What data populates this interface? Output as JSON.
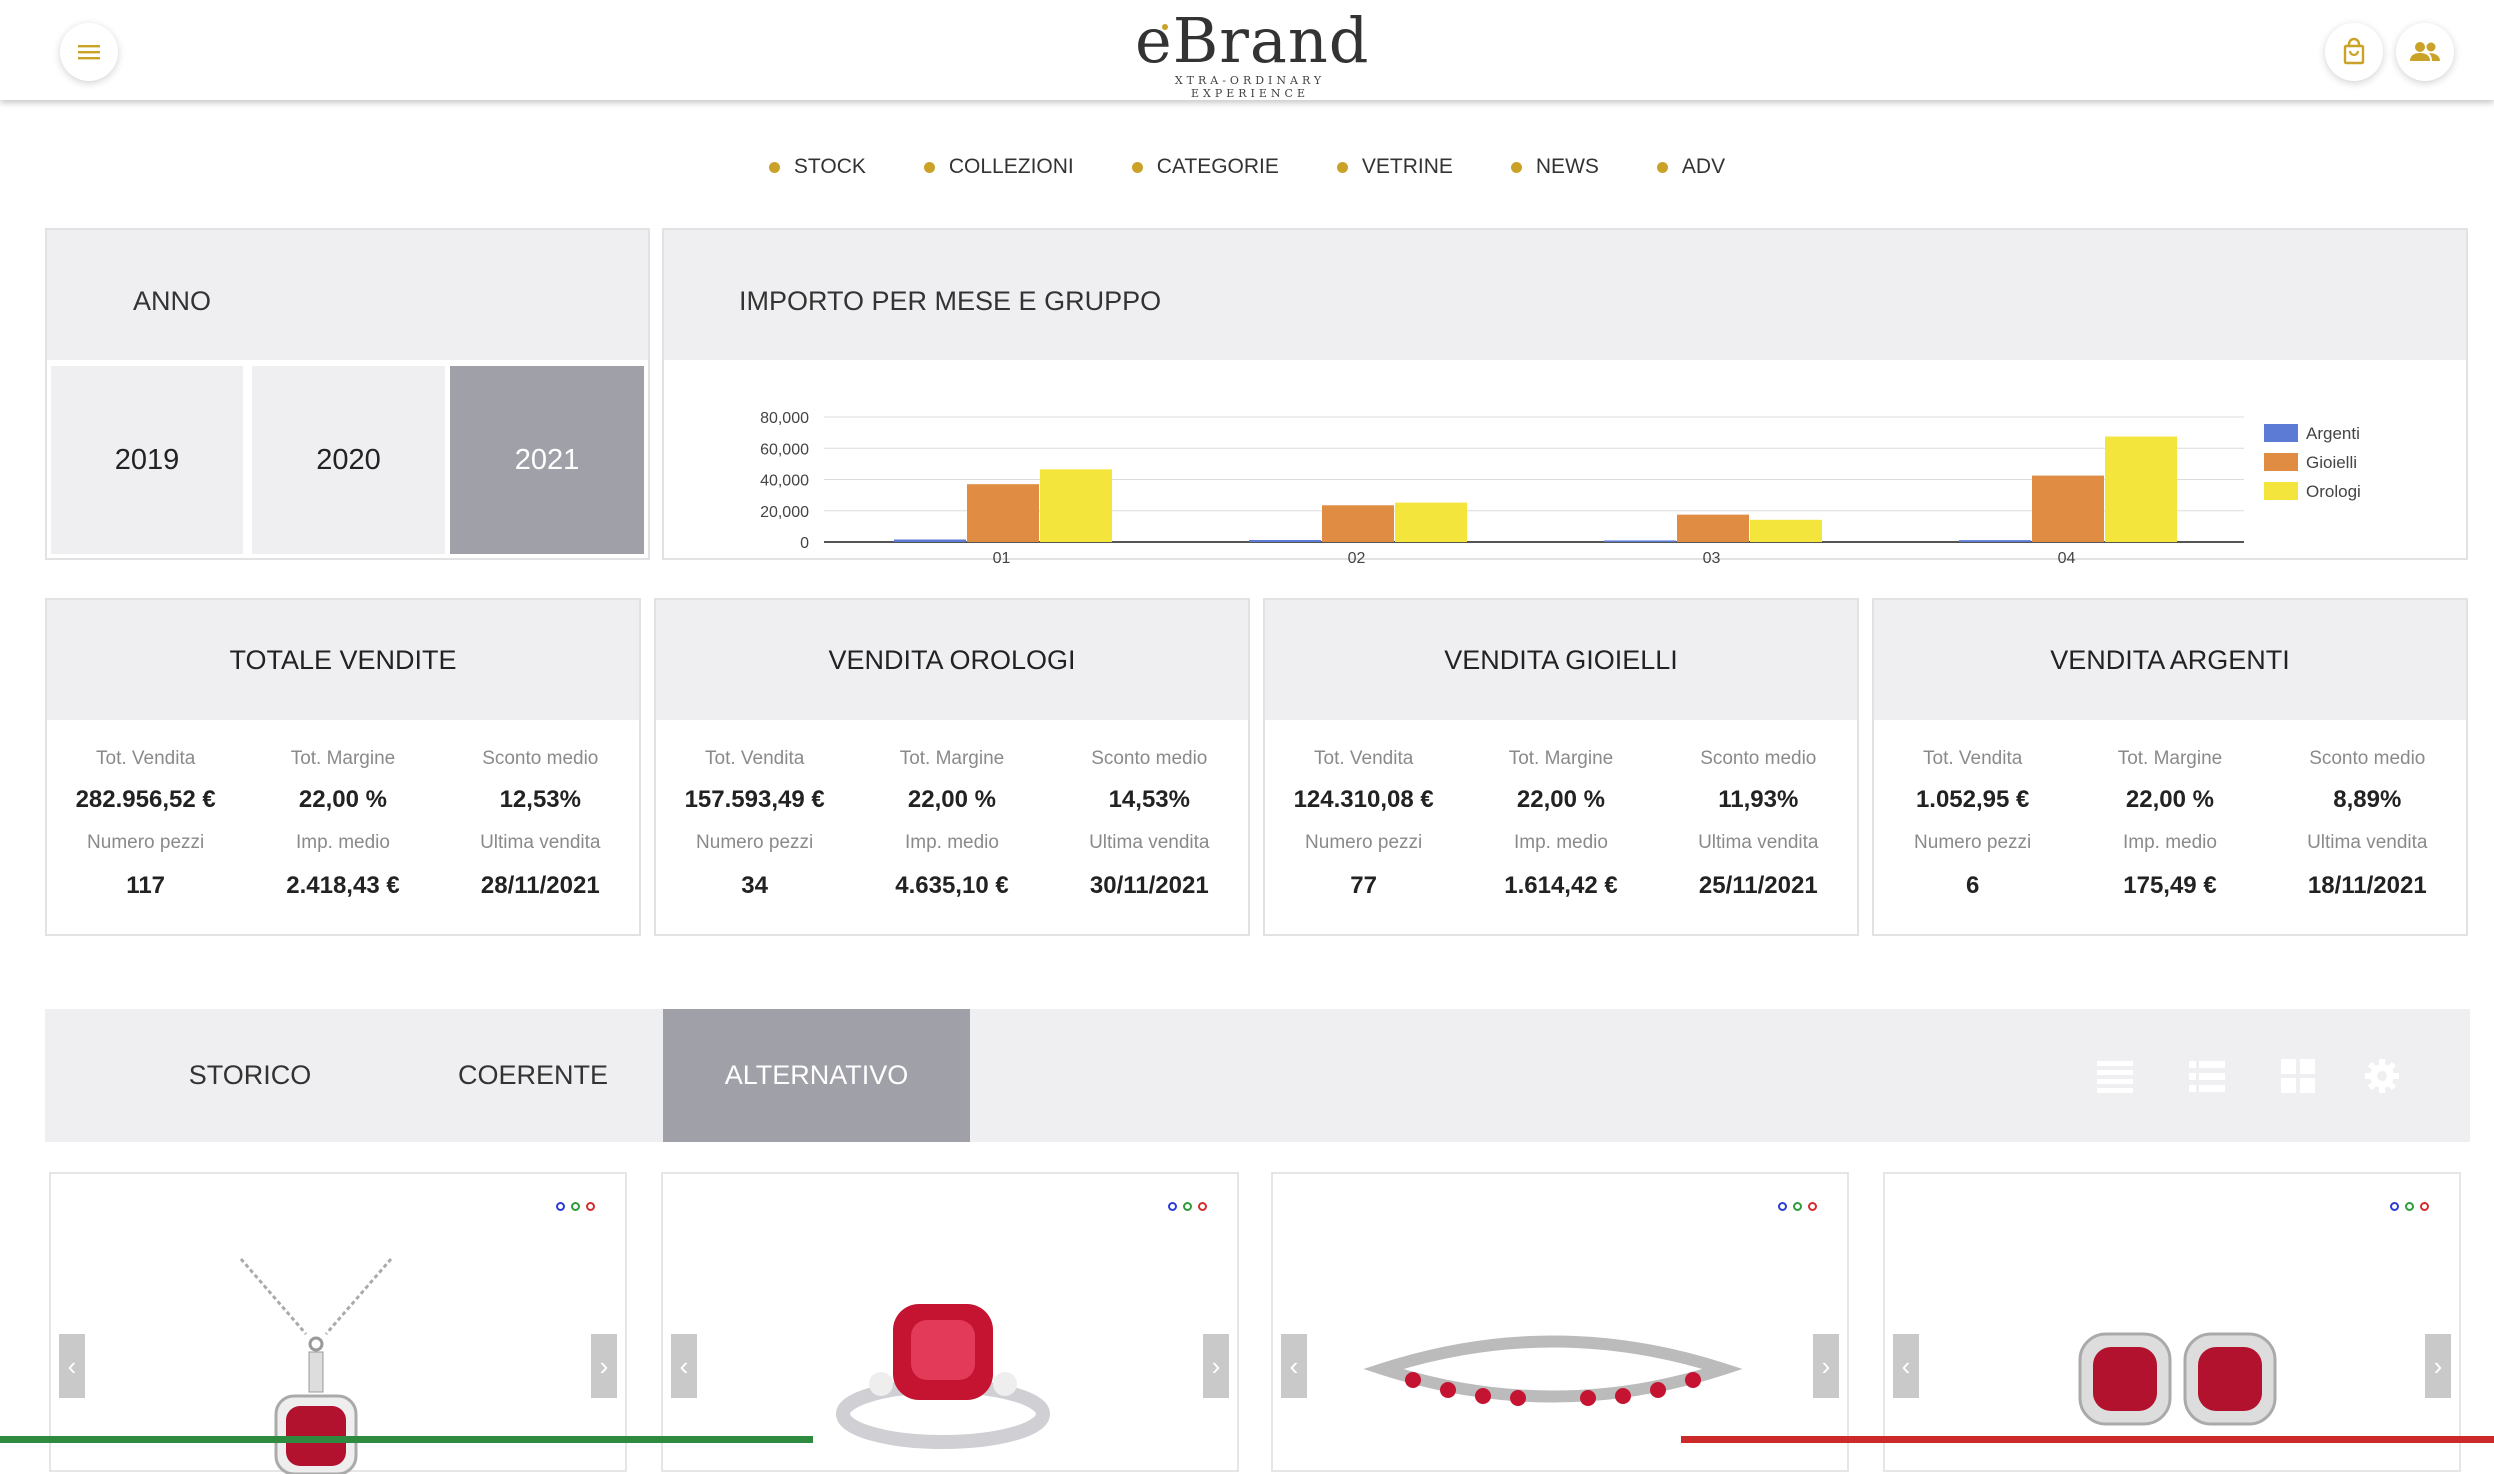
{
  "brand": {
    "name": "eBrand",
    "tagline": "XTRA-ORDINARY EXPERIENCE"
  },
  "colors": {
    "accent": "#c9a227",
    "panel_bg": "#efeff1",
    "active_bg": "#a0a0a8",
    "argenti": "#5b7bd5",
    "gioielli": "#e08c42",
    "orologi": "#f3e53b"
  },
  "header_icons": [
    "menu-icon",
    "shopping-bag-icon",
    "users-icon"
  ],
  "nav": [
    "STOCK",
    "COLLEZIONI",
    "CATEGORIE",
    "VETRINE",
    "NEWS",
    "ADV"
  ],
  "year_panel": {
    "title": "ANNO",
    "years": [
      "2019",
      "2020",
      "2021"
    ],
    "selected": "2021"
  },
  "chart_panel": {
    "title": "IMPORTO PER MESE E GRUPPO"
  },
  "chart_data": {
    "type": "bar",
    "title": "IMPORTO PER MESE E GRUPPO",
    "categories": [
      "01",
      "02",
      "03",
      "04"
    ],
    "series": [
      {
        "name": "Argenti",
        "values": [
          1600,
          1300,
          1000,
          1200
        ]
      },
      {
        "name": "Gioielli",
        "values": [
          37000,
          23500,
          17500,
          42500
        ]
      },
      {
        "name": "Orologi",
        "values": [
          46500,
          25200,
          14200,
          67500
        ]
      }
    ],
    "ylim": [
      0,
      80000
    ],
    "yticks": [
      "80,000",
      "60,000",
      "40,000",
      "20,000",
      "0"
    ],
    "xlabel": "",
    "ylabel": "",
    "legend": "right",
    "grid": true
  },
  "stats": [
    {
      "title": "TOTALE VENDITE",
      "tot_vendita": "282.956,52 €",
      "tot_margine": "22,00 %",
      "sconto_medio": "12,53%",
      "numero_pezzi": "117",
      "imp_medio": "2.418,43 €",
      "ultima_vendita": "28/11/2021"
    },
    {
      "title": "VENDITA OROLOGI",
      "tot_vendita": "157.593,49 €",
      "tot_margine": "22,00 %",
      "sconto_medio": "14,53%",
      "numero_pezzi": "34",
      "imp_medio": "4.635,10 €",
      "ultima_vendita": "30/11/2021"
    },
    {
      "title": "VENDITA GIOIELLI",
      "tot_vendita": "124.310,08 €",
      "tot_margine": "22,00 %",
      "sconto_medio": "11,93%",
      "numero_pezzi": "77",
      "imp_medio": "1.614,42 €",
      "ultima_vendita": "25/11/2021"
    },
    {
      "title": "VENDITA ARGENTI",
      "tot_vendita": "1.052,95 €",
      "tot_margine": "22,00 %",
      "sconto_medio": "8,89%",
      "numero_pezzi": "6",
      "imp_medio": "175,49 €",
      "ultima_vendita": "18/11/2021"
    }
  ],
  "stat_labels": {
    "tot_vendita": "Tot. Vendita",
    "tot_margine": "Tot. Margine",
    "sconto_medio": "Sconto medio",
    "numero_pezzi": "Numero pezzi",
    "imp_medio": "Imp. medio",
    "ultima_vendita": "Ultima vendita"
  },
  "tabs": [
    "STORICO",
    "COERENTE",
    "ALTERNATIVO"
  ],
  "active_tab": "ALTERNATIVO",
  "view_icons": [
    "list-view-icon",
    "detail-list-icon",
    "grid-view-icon",
    "settings-icon"
  ],
  "products": [
    {
      "name": "ruby-pendant-necklace"
    },
    {
      "name": "ruby-ring"
    },
    {
      "name": "ruby-tennis-bracelet"
    },
    {
      "name": "ruby-stud-earrings"
    }
  ]
}
